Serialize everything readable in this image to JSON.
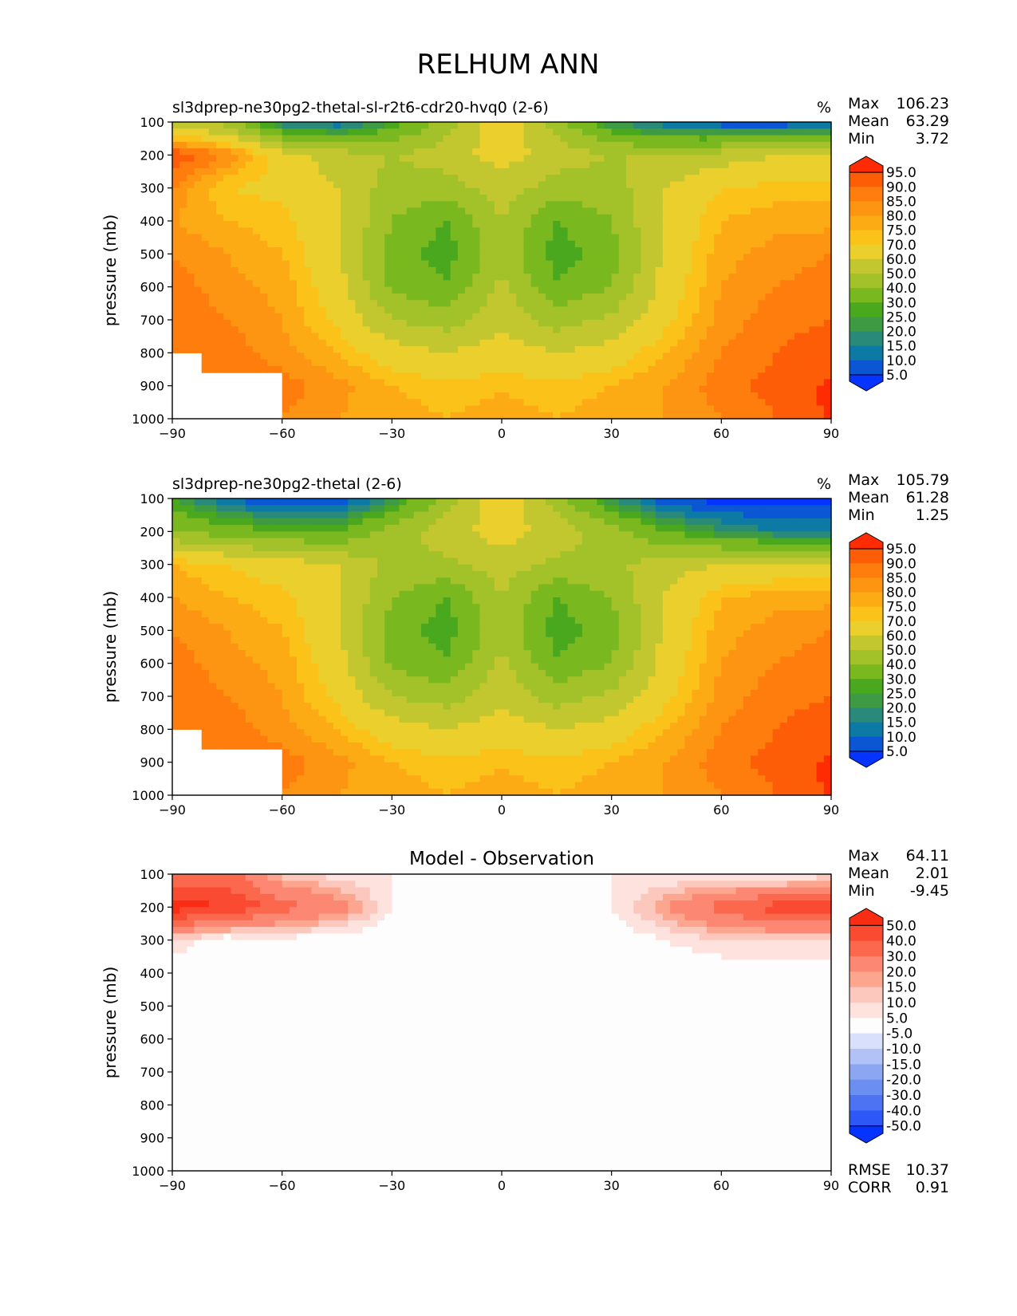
{
  "figure": {
    "title": "RELHUM ANN"
  },
  "palettes": {
    "abs": [
      "#0533ff",
      "#0b56d3",
      "#0d7aa5",
      "#2a8a7a",
      "#3f9b43",
      "#4aa81f",
      "#7ab81f",
      "#a3c22a",
      "#c2c730",
      "#ebd02d",
      "#fbc31a",
      "#fcab14",
      "#fd9512",
      "#fe7d0d",
      "#fe5d08",
      "#ff2b03"
    ],
    "diff": [
      "#0533ff",
      "#2e57f8",
      "#4d73f3",
      "#6b8ff0",
      "#8da6f2",
      "#b3c2f6",
      "#d9e0fb",
      "#fdfdfd",
      "#fde2de",
      "#fcc8bd",
      "#fca68f",
      "#fc8772",
      "#fb684d",
      "#fa4a32",
      "#f92d13"
    ]
  },
  "chart_data": [
    {
      "type": "heatmap",
      "id": "test",
      "title": "sl3dprep-ne30pg2-thetal-sl-r2t6-cdr20-hvq0 (2-6)",
      "units": "%",
      "ylabel": "pressure (mb)",
      "xlabel": "",
      "xlim": [
        -90,
        90
      ],
      "ylim": [
        1000,
        100
      ],
      "xticks": [
        "−90",
        "−60",
        "−30",
        "0",
        "30",
        "60",
        "90"
      ],
      "yticks": [
        "100",
        "200",
        "300",
        "400",
        "500",
        "600",
        "700",
        "800",
        "900",
        "1000"
      ],
      "stats": [
        {
          "label": "Max",
          "value": "106.23"
        },
        {
          "label": "Mean",
          "value": "63.29"
        },
        {
          "label": "Min",
          "value": "3.72"
        }
      ],
      "colorbar": {
        "levels": [
          "95.0",
          "90.0",
          "85.0",
          "80.0",
          "75.0",
          "70.0",
          "60.0",
          "50.0",
          "40.0",
          "30.0",
          "25.0",
          "20.0",
          "15.0",
          "10.0",
          "5.0"
        ],
        "palette": "abs"
      },
      "lat": [
        -90,
        -75,
        -60,
        -45,
        -30,
        -15,
        0,
        15,
        30,
        45,
        60,
        75,
        90
      ],
      "lev": [
        100,
        200,
        300,
        400,
        500,
        600,
        700,
        800,
        900,
        1000
      ],
      "values": [
        [
          55,
          45,
          15,
          10,
          25,
          45,
          70,
          45,
          20,
          10,
          5,
          3,
          10
        ],
        [
          95,
          85,
          65,
          55,
          50,
          55,
          65,
          55,
          50,
          50,
          55,
          60,
          60
        ],
        [
          85,
          70,
          68,
          60,
          45,
          45,
          55,
          45,
          45,
          60,
          70,
          72,
          72
        ],
        [
          80,
          75,
          72,
          62,
          40,
          30,
          50,
          30,
          40,
          62,
          75,
          78,
          78
        ],
        [
          85,
          80,
          75,
          62,
          35,
          25,
          48,
          25,
          35,
          62,
          78,
          82,
          85
        ],
        [
          88,
          82,
          78,
          65,
          38,
          32,
          52,
          32,
          40,
          65,
          80,
          85,
          88
        ],
        [
          90,
          85,
          80,
          68,
          50,
          45,
          58,
          45,
          52,
          68,
          82,
          88,
          90
        ],
        [
          90,
          88,
          82,
          75,
          65,
          60,
          65,
          60,
          65,
          75,
          85,
          90,
          93
        ],
        [
          null,
          null,
          88,
          82,
          75,
          72,
          74,
          72,
          75,
          80,
          88,
          92,
          96
        ],
        [
          null,
          null,
          85,
          80,
          78,
          75,
          78,
          75,
          78,
          80,
          85,
          90,
          96
        ]
      ]
    },
    {
      "type": "heatmap",
      "id": "ref",
      "title": "sl3dprep-ne30pg2-thetal (2-6)",
      "units": "%",
      "ylabel": "pressure (mb)",
      "xlabel": "",
      "xlim": [
        -90,
        90
      ],
      "ylim": [
        1000,
        100
      ],
      "xticks": [
        "−90",
        "−60",
        "−30",
        "0",
        "30",
        "60",
        "90"
      ],
      "yticks": [
        "100",
        "200",
        "300",
        "400",
        "500",
        "600",
        "700",
        "800",
        "900",
        "1000"
      ],
      "stats": [
        {
          "label": "Max",
          "value": "105.79"
        },
        {
          "label": "Mean",
          "value": "61.28"
        },
        {
          "label": "Min",
          "value": "1.25"
        }
      ],
      "colorbar": {
        "levels": [
          "95.0",
          "90.0",
          "85.0",
          "80.0",
          "75.0",
          "70.0",
          "60.0",
          "50.0",
          "40.0",
          "30.0",
          "25.0",
          "20.0",
          "15.0",
          "10.0",
          "5.0"
        ],
        "palette": "abs"
      },
      "lat": [
        -90,
        -75,
        -60,
        -45,
        -30,
        -15,
        0,
        15,
        30,
        45,
        60,
        75,
        90
      ],
      "lev": [
        100,
        200,
        300,
        400,
        500,
        600,
        700,
        800,
        900,
        1000
      ],
      "values": [
        [
          25,
          10,
          3,
          3,
          20,
          45,
          70,
          45,
          20,
          5,
          2,
          2,
          2
        ],
        [
          40,
          35,
          30,
          30,
          45,
          55,
          65,
          55,
          45,
          30,
          20,
          15,
          15
        ],
        [
          75,
          70,
          65,
          60,
          48,
          48,
          55,
          48,
          48,
          55,
          60,
          62,
          62
        ],
        [
          80,
          75,
          72,
          62,
          40,
          30,
          50,
          30,
          40,
          62,
          75,
          78,
          78
        ],
        [
          85,
          80,
          75,
          62,
          35,
          25,
          48,
          25,
          35,
          62,
          78,
          82,
          85
        ],
        [
          88,
          82,
          78,
          65,
          38,
          32,
          52,
          32,
          40,
          65,
          80,
          85,
          88
        ],
        [
          90,
          85,
          80,
          68,
          50,
          45,
          58,
          45,
          52,
          68,
          82,
          88,
          90
        ],
        [
          90,
          88,
          82,
          75,
          65,
          60,
          65,
          60,
          65,
          75,
          85,
          90,
          93
        ],
        [
          null,
          null,
          88,
          82,
          75,
          72,
          74,
          72,
          75,
          80,
          88,
          92,
          96
        ],
        [
          null,
          null,
          85,
          80,
          78,
          75,
          78,
          75,
          78,
          80,
          85,
          90,
          96
        ]
      ]
    },
    {
      "type": "heatmap",
      "id": "diff",
      "title": "Model - Observation",
      "units": "",
      "ylabel": "pressure (mb)",
      "xlabel": "",
      "xlim": [
        -90,
        90
      ],
      "ylim": [
        1000,
        100
      ],
      "xticks": [
        "−90",
        "−60",
        "−30",
        "0",
        "30",
        "60",
        "90"
      ],
      "yticks": [
        "100",
        "200",
        "300",
        "400",
        "500",
        "600",
        "700",
        "800",
        "900",
        "1000"
      ],
      "stats": [
        {
          "label": "Max",
          "value": "64.11"
        },
        {
          "label": "Mean",
          "value": "2.01"
        },
        {
          "label": "Min",
          "value": "-9.45"
        }
      ],
      "extra_stats": [
        {
          "label": "RMSE",
          "value": "10.37"
        },
        {
          "label": "CORR",
          "value": "0.91"
        }
      ],
      "colorbar": {
        "levels": [
          "50.0",
          "40.0",
          "30.0",
          "20.0",
          "15.0",
          "10.0",
          "5.0",
          "-5.0",
          "-10.0",
          "-15.0",
          "-20.0",
          "-30.0",
          "-40.0",
          "-50.0"
        ],
        "palette": "diff"
      },
      "lat": [
        -90,
        -75,
        -60,
        -45,
        -30,
        -15,
        0,
        15,
        30,
        45,
        60,
        75,
        90
      ],
      "lev": [
        100,
        200,
        300,
        400,
        500,
        600,
        700,
        800,
        900,
        1000
      ],
      "values": [
        [
          30,
          35,
          12,
          7,
          5,
          1,
          0,
          1,
          5,
          5,
          3,
          1,
          8
        ],
        [
          55,
          50,
          35,
          25,
          5,
          0,
          0,
          0,
          5,
          20,
          35,
          45,
          45
        ],
        [
          10,
          0,
          3,
          0,
          0,
          0,
          0,
          0,
          0,
          5,
          10,
          10,
          10
        ],
        [
          0,
          0,
          0,
          0,
          0,
          0,
          0,
          0,
          0,
          0,
          0,
          0,
          0
        ],
        [
          5,
          0,
          0,
          0,
          0,
          0,
          0,
          0,
          0,
          0,
          0,
          0,
          0
        ],
        [
          0,
          0,
          0,
          0,
          0,
          0,
          0,
          0,
          0,
          0,
          0,
          0,
          0
        ],
        [
          0,
          0,
          0,
          0,
          0,
          0,
          0,
          0,
          0,
          0,
          0,
          0,
          0
        ],
        [
          0,
          0,
          0,
          0,
          0,
          0,
          0,
          0,
          0,
          0,
          0,
          0,
          0
        ],
        [
          0,
          0,
          0,
          0,
          0,
          0,
          0,
          0,
          0,
          0,
          0,
          0,
          0
        ],
        [
          0,
          0,
          0,
          0,
          0,
          0,
          0,
          0,
          0,
          0,
          0,
          0,
          0
        ]
      ]
    }
  ]
}
